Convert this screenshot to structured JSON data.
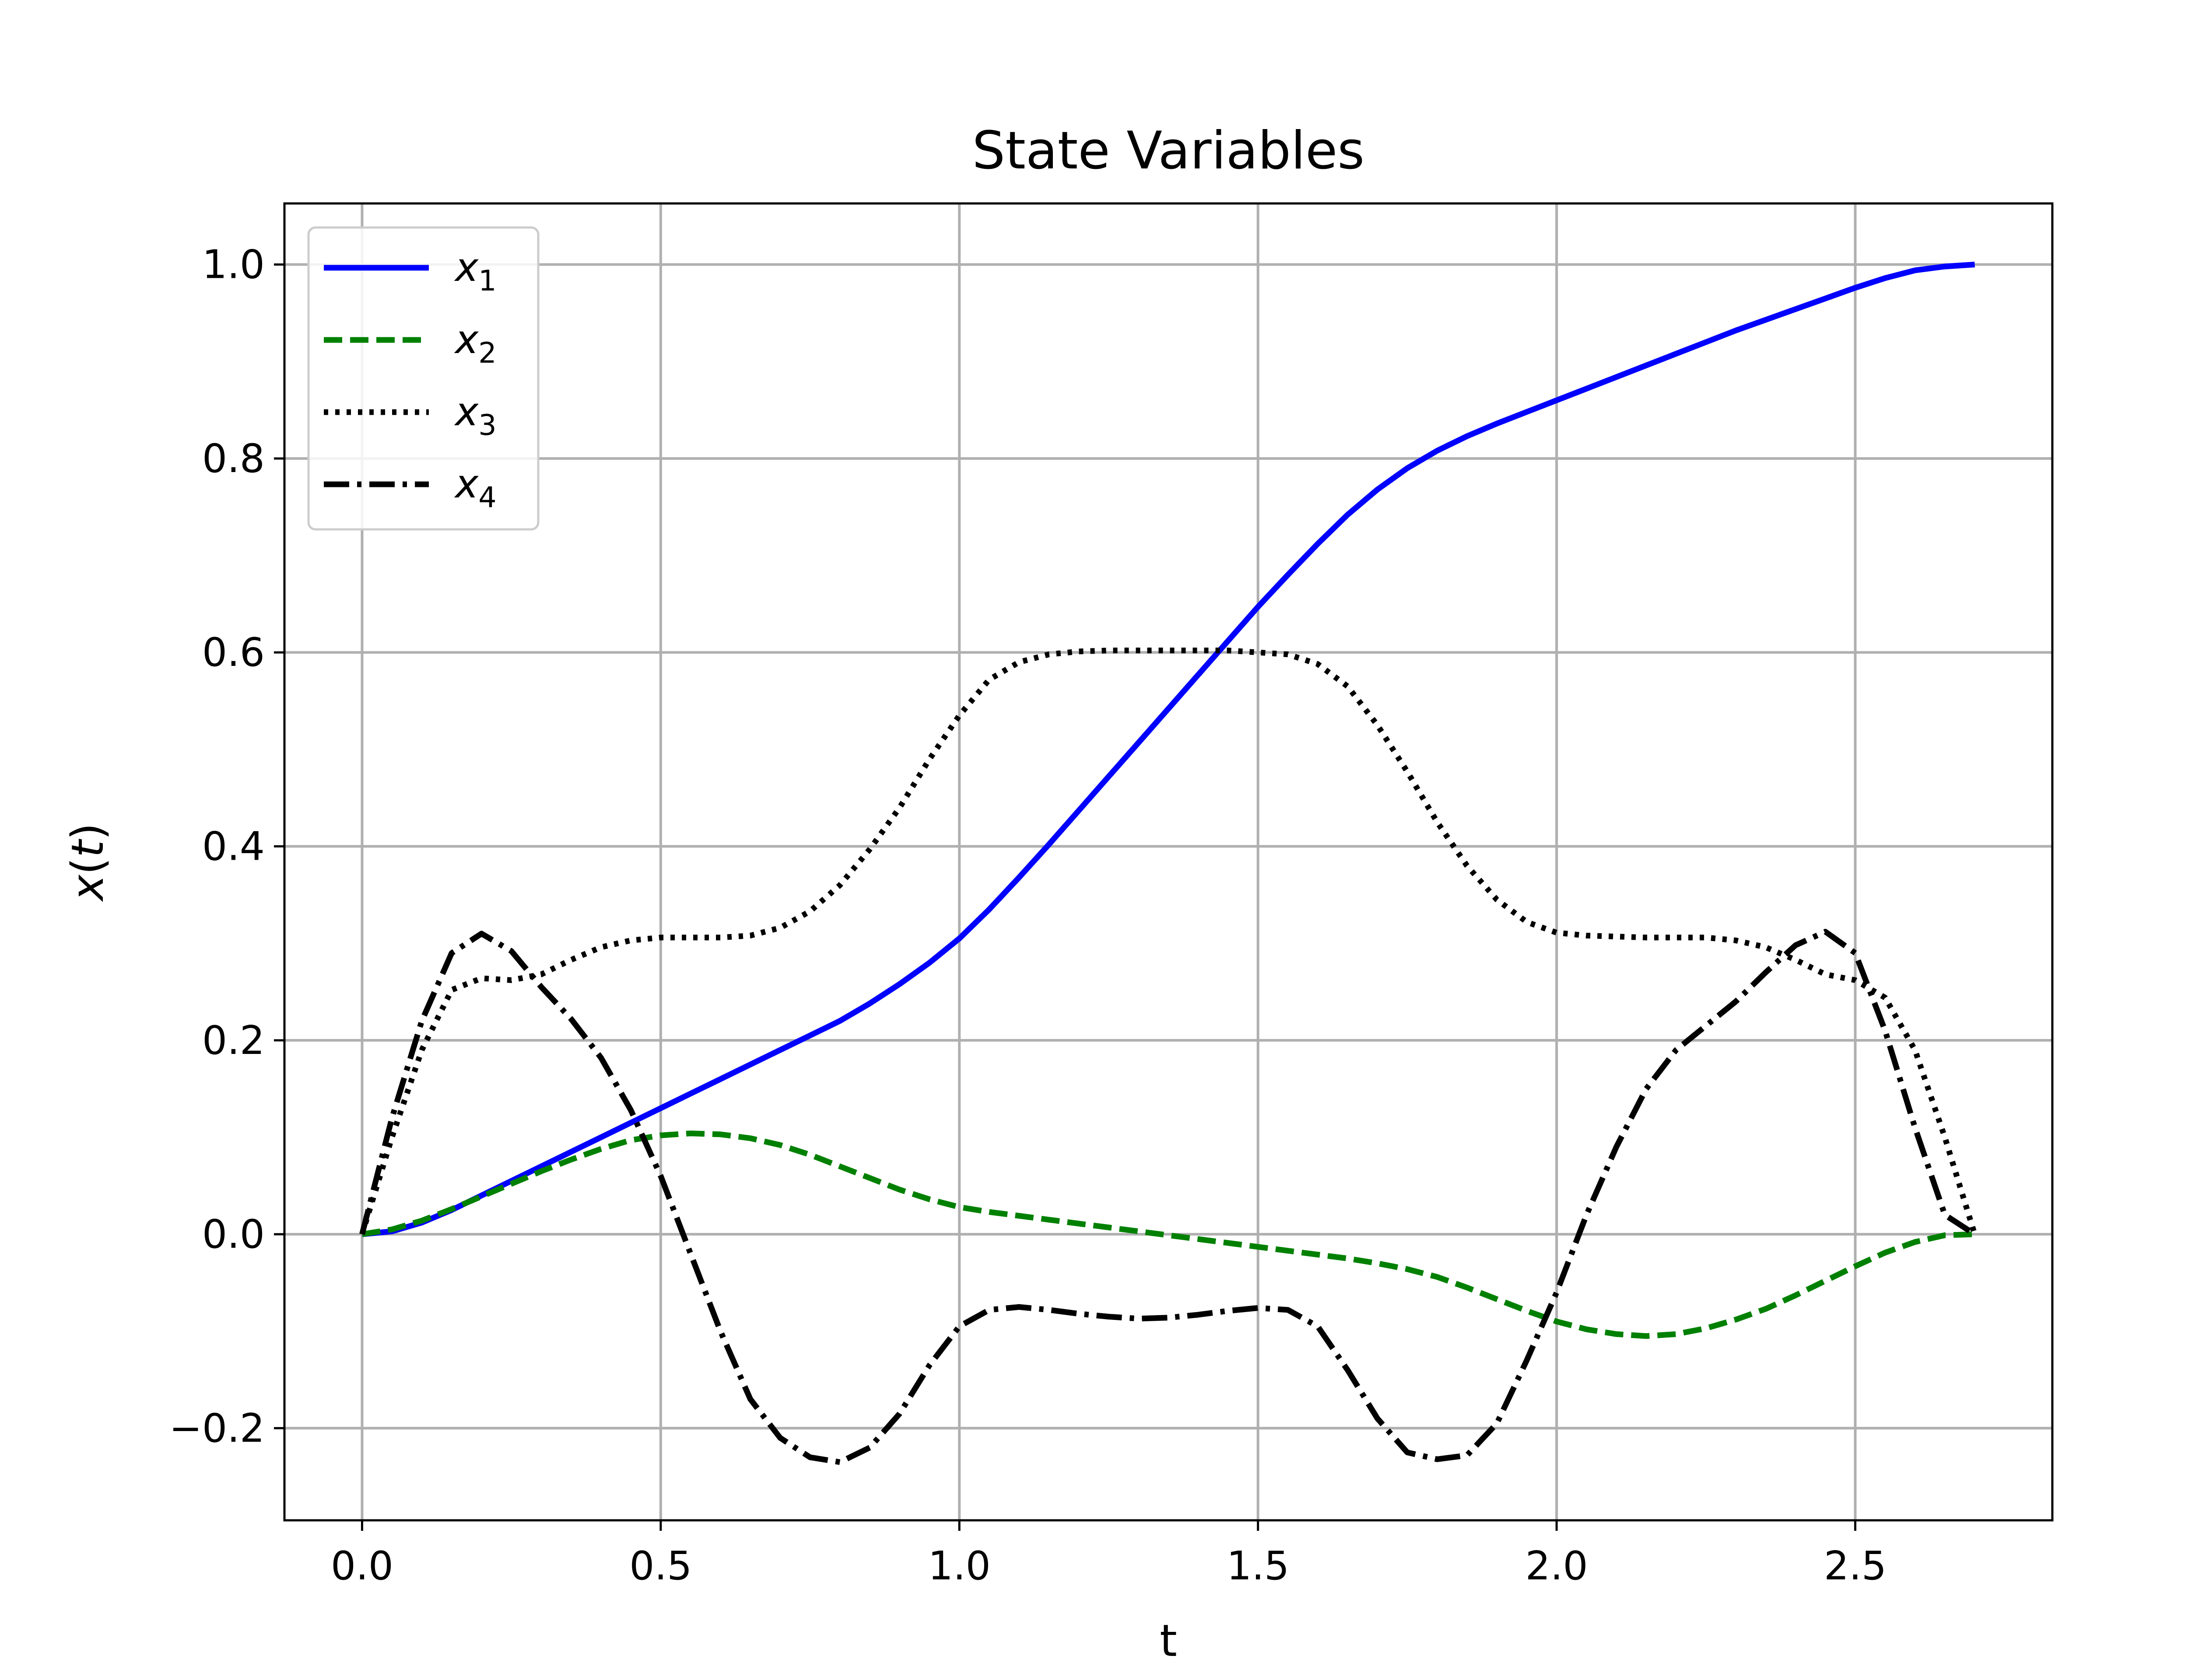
{
  "chart_data": {
    "type": "line",
    "title": "State Variables",
    "xlabel": "t",
    "ylabel": "x(t)",
    "ylabel_parts": {
      "var": "x",
      "open": "(",
      "arg": "t",
      "close": ")"
    },
    "xlim": [
      -0.13,
      2.83
    ],
    "ylim": [
      -0.295,
      1.063
    ],
    "xticks": [
      0.0,
      0.5,
      1.0,
      1.5,
      2.0,
      2.5
    ],
    "xtick_labels": [
      "0.0",
      "0.5",
      "1.0",
      "1.5",
      "2.0",
      "2.5"
    ],
    "yticks": [
      -0.2,
      0.0,
      0.2,
      0.4,
      0.6,
      0.8,
      1.0
    ],
    "ytick_labels": [
      "−0.2",
      "0.0",
      "0.2",
      "0.4",
      "0.6",
      "0.8",
      "1.0"
    ],
    "grid": true,
    "legend_position": "upper-left",
    "series": [
      {
        "name": "x1",
        "label_base": "x",
        "label_sub": "1",
        "color": "#0000ff",
        "style": "solid",
        "x": [
          0.0,
          0.05,
          0.1,
          0.15,
          0.2,
          0.25,
          0.3,
          0.35,
          0.4,
          0.45,
          0.5,
          0.55,
          0.6,
          0.65,
          0.7,
          0.75,
          0.8,
          0.85,
          0.9,
          0.95,
          1.0,
          1.05,
          1.1,
          1.15,
          1.2,
          1.25,
          1.3,
          1.35,
          1.4,
          1.45,
          1.5,
          1.55,
          1.6,
          1.65,
          1.7,
          1.75,
          1.8,
          1.85,
          1.9,
          1.95,
          2.0,
          2.05,
          2.1,
          2.15,
          2.2,
          2.25,
          2.3,
          2.35,
          2.4,
          2.45,
          2.5,
          2.55,
          2.6,
          2.65,
          2.7
        ],
        "y": [
          0.0,
          0.003,
          0.012,
          0.025,
          0.04,
          0.055,
          0.07,
          0.085,
          0.1,
          0.115,
          0.13,
          0.145,
          0.16,
          0.175,
          0.19,
          0.205,
          0.22,
          0.238,
          0.258,
          0.28,
          0.305,
          0.335,
          0.368,
          0.402,
          0.437,
          0.472,
          0.507,
          0.542,
          0.577,
          0.612,
          0.647,
          0.68,
          0.712,
          0.742,
          0.768,
          0.79,
          0.808,
          0.823,
          0.836,
          0.848,
          0.86,
          0.872,
          0.884,
          0.896,
          0.908,
          0.92,
          0.932,
          0.943,
          0.954,
          0.965,
          0.976,
          0.986,
          0.994,
          0.998,
          1.0
        ]
      },
      {
        "name": "x2",
        "label_base": "x",
        "label_sub": "2",
        "color": "#008000",
        "style": "dashed",
        "x": [
          0.0,
          0.05,
          0.1,
          0.15,
          0.2,
          0.25,
          0.3,
          0.35,
          0.4,
          0.45,
          0.5,
          0.55,
          0.6,
          0.65,
          0.7,
          0.75,
          0.8,
          0.85,
          0.9,
          0.95,
          1.0,
          1.05,
          1.1,
          1.15,
          1.2,
          1.25,
          1.3,
          1.35,
          1.4,
          1.45,
          1.5,
          1.55,
          1.6,
          1.65,
          1.7,
          1.75,
          1.8,
          1.85,
          1.9,
          1.95,
          2.0,
          2.05,
          2.1,
          2.15,
          2.2,
          2.25,
          2.3,
          2.35,
          2.4,
          2.45,
          2.5,
          2.55,
          2.6,
          2.65,
          2.7
        ],
        "y": [
          0.0,
          0.005,
          0.014,
          0.026,
          0.039,
          0.052,
          0.065,
          0.077,
          0.088,
          0.097,
          0.102,
          0.104,
          0.103,
          0.099,
          0.092,
          0.082,
          0.07,
          0.058,
          0.046,
          0.036,
          0.028,
          0.023,
          0.019,
          0.015,
          0.011,
          0.007,
          0.003,
          -0.001,
          -0.005,
          -0.009,
          -0.013,
          -0.017,
          -0.021,
          -0.025,
          -0.03,
          -0.036,
          -0.044,
          -0.055,
          -0.067,
          -0.079,
          -0.09,
          -0.098,
          -0.103,
          -0.105,
          -0.103,
          -0.097,
          -0.088,
          -0.077,
          -0.063,
          -0.048,
          -0.033,
          -0.019,
          -0.008,
          -0.001,
          0.0
        ]
      },
      {
        "name": "x3",
        "label_base": "x",
        "label_sub": "3",
        "color": "#000000",
        "style": "dotted",
        "x": [
          0.0,
          0.05,
          0.1,
          0.15,
          0.2,
          0.25,
          0.3,
          0.35,
          0.4,
          0.45,
          0.5,
          0.55,
          0.6,
          0.65,
          0.7,
          0.75,
          0.8,
          0.85,
          0.9,
          0.95,
          1.0,
          1.05,
          1.1,
          1.15,
          1.2,
          1.25,
          1.3,
          1.35,
          1.4,
          1.45,
          1.5,
          1.55,
          1.6,
          1.65,
          1.7,
          1.75,
          1.8,
          1.85,
          1.9,
          1.95,
          2.0,
          2.05,
          2.1,
          2.15,
          2.2,
          2.25,
          2.3,
          2.35,
          2.4,
          2.45,
          2.5,
          2.55,
          2.6,
          2.65,
          2.7
        ],
        "y": [
          0.0,
          0.1,
          0.19,
          0.252,
          0.264,
          0.262,
          0.268,
          0.283,
          0.296,
          0.303,
          0.306,
          0.306,
          0.306,
          0.308,
          0.316,
          0.333,
          0.36,
          0.397,
          0.44,
          0.49,
          0.535,
          0.572,
          0.59,
          0.598,
          0.601,
          0.602,
          0.602,
          0.602,
          0.602,
          0.602,
          0.6,
          0.598,
          0.588,
          0.565,
          0.525,
          0.477,
          0.425,
          0.38,
          0.345,
          0.322,
          0.311,
          0.308,
          0.307,
          0.306,
          0.306,
          0.306,
          0.303,
          0.296,
          0.283,
          0.268,
          0.262,
          0.244,
          0.19,
          0.1,
          0.0
        ]
      },
      {
        "name": "x4",
        "label_base": "x",
        "label_sub": "4",
        "color": "#000000",
        "style": "dashdot",
        "x": [
          0.0,
          0.05,
          0.1,
          0.15,
          0.2,
          0.25,
          0.3,
          0.35,
          0.4,
          0.45,
          0.5,
          0.55,
          0.6,
          0.65,
          0.7,
          0.75,
          0.8,
          0.85,
          0.9,
          0.95,
          1.0,
          1.05,
          1.1,
          1.15,
          1.2,
          1.25,
          1.3,
          1.35,
          1.4,
          1.45,
          1.5,
          1.55,
          1.6,
          1.65,
          1.7,
          1.75,
          1.8,
          1.85,
          1.9,
          1.95,
          2.0,
          2.05,
          2.1,
          2.15,
          2.2,
          2.25,
          2.3,
          2.35,
          2.4,
          2.45,
          2.5,
          2.55,
          2.6,
          2.65,
          2.7
        ],
        "y": [
          0.0,
          0.12,
          0.22,
          0.29,
          0.31,
          0.292,
          0.255,
          0.222,
          0.182,
          0.128,
          0.06,
          -0.02,
          -0.1,
          -0.17,
          -0.21,
          -0.23,
          -0.235,
          -0.22,
          -0.185,
          -0.135,
          -0.095,
          -0.078,
          -0.075,
          -0.078,
          -0.082,
          -0.085,
          -0.087,
          -0.086,
          -0.083,
          -0.079,
          -0.076,
          -0.078,
          -0.095,
          -0.14,
          -0.19,
          -0.225,
          -0.232,
          -0.228,
          -0.195,
          -0.13,
          -0.06,
          0.02,
          0.09,
          0.15,
          0.19,
          0.215,
          0.24,
          0.27,
          0.298,
          0.312,
          0.29,
          0.21,
          0.11,
          0.02,
          0.0
        ]
      }
    ]
  }
}
